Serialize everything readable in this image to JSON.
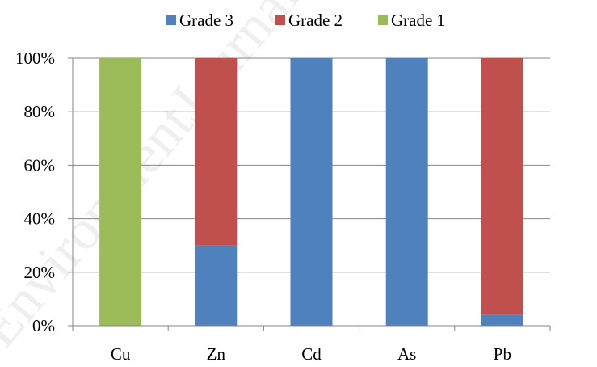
{
  "chart_data": {
    "type": "bar",
    "stacked": true,
    "percent_stacked": true,
    "categories": [
      "Cu",
      "Zn",
      "Cd",
      "As",
      "Pb"
    ],
    "series": [
      {
        "name": "Grade 3",
        "color": "#4f81bd",
        "values": [
          0,
          30,
          100,
          100,
          4
        ]
      },
      {
        "name": "Grade 2",
        "color": "#c0504d",
        "values": [
          0,
          70,
          0,
          0,
          96
        ]
      },
      {
        "name": "Grade 1",
        "color": "#9bbb59",
        "values": [
          100,
          0,
          0,
          0,
          0
        ]
      }
    ],
    "ylim": [
      0,
      100
    ],
    "yticks": [
      0,
      20,
      40,
      60,
      80,
      100
    ],
    "ytick_labels": [
      "0%",
      "20%",
      "40%",
      "60%",
      "80%",
      "100%"
    ],
    "grid": true,
    "legend_position": "top",
    "title": "",
    "xlabel": "",
    "ylabel": ""
  },
  "watermark": {
    "text": "EnvironmentJournal"
  }
}
